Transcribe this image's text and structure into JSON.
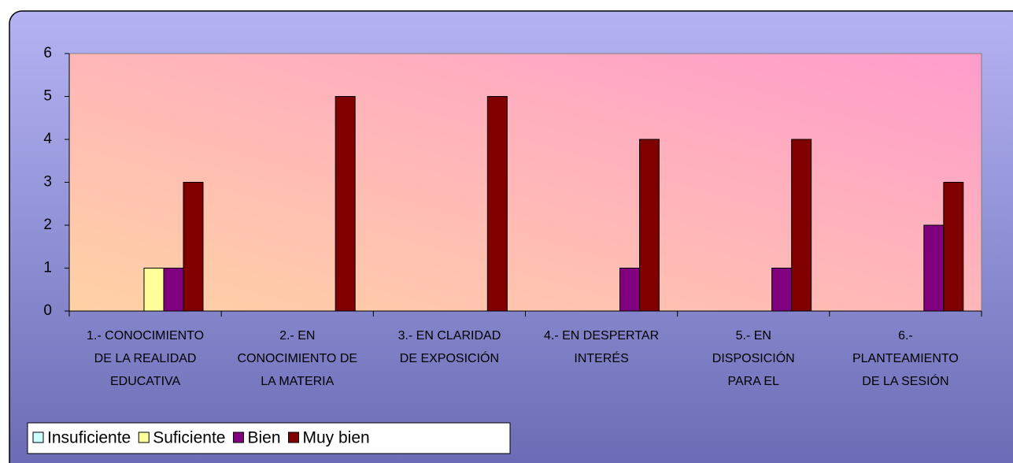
{
  "chart_data": {
    "type": "bar",
    "categories": [
      "1.- CONOCIMIENTO\nDE LA REALIDAD\nEDUCATIVA",
      "2.- EN\nCONOCIMIENTO DE\nLA MATERIA",
      "3.- EN CLARIDAD\nDE EXPOSICIÓN",
      "4.- EN DESPERTAR\nINTERÉS",
      "5.- EN\nDISPOSICIÓN\nPARA EL",
      "6.-\nPLANTEAMIENTO\nDE LA SESIÓN"
    ],
    "series": [
      {
        "name": "Insuficiente",
        "color": "#ccffff",
        "values": [
          0,
          0,
          0,
          0,
          0,
          0
        ]
      },
      {
        "name": "Suficiente",
        "color": "#ffff99",
        "values": [
          1,
          0,
          0,
          0,
          0,
          0
        ]
      },
      {
        "name": "Bien",
        "color": "#800080",
        "values": [
          1,
          0,
          0,
          1,
          1,
          2
        ]
      },
      {
        "name": "Muy bien",
        "color": "#800000",
        "values": [
          3,
          5,
          5,
          4,
          4,
          3
        ]
      }
    ],
    "ylim": [
      0,
      6
    ],
    "yticks": [
      0,
      1,
      2,
      3,
      4,
      5,
      6
    ],
    "legend": "bottom-left"
  }
}
